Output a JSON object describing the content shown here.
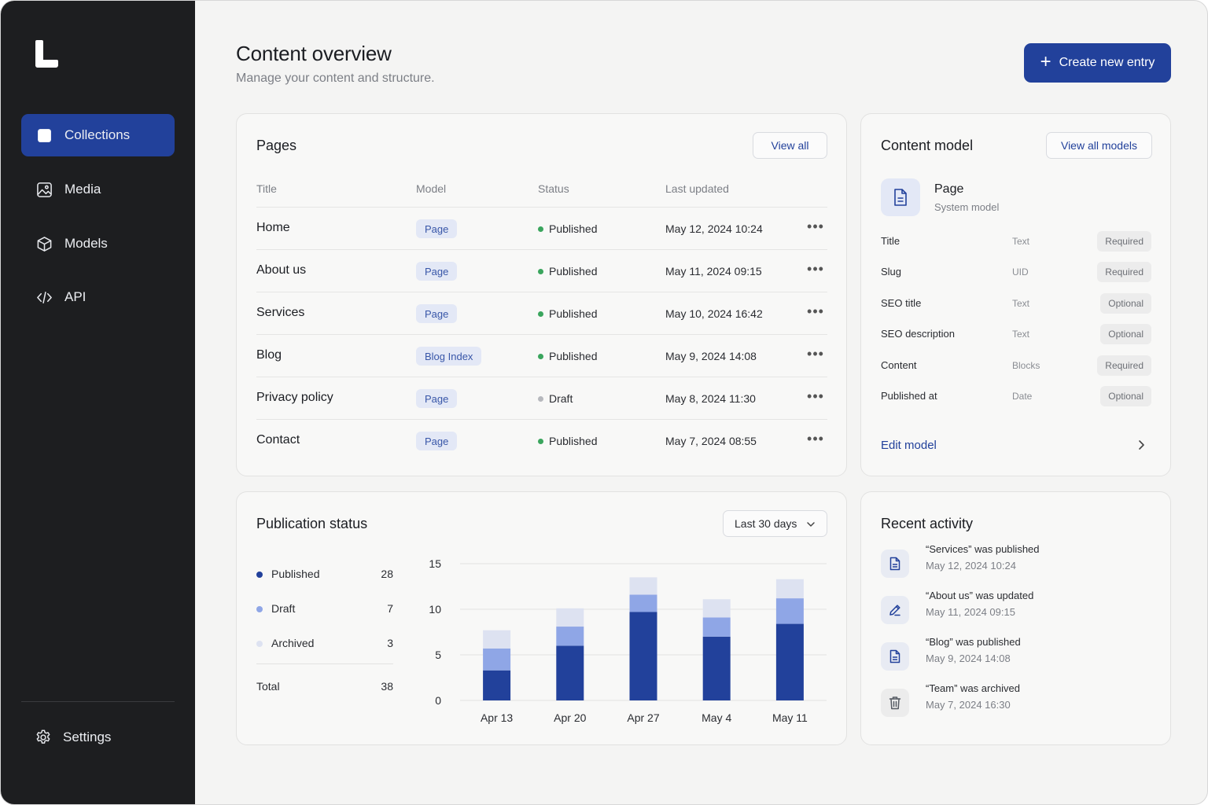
{
  "sidebar": {
    "items": [
      {
        "label": "Collections",
        "icon": "square-icon",
        "active": true
      },
      {
        "label": "Media",
        "icon": "image-icon",
        "active": false
      },
      {
        "label": "Models",
        "icon": "cube-icon",
        "active": false
      },
      {
        "label": "API",
        "icon": "code-icon",
        "active": false
      }
    ],
    "settings_label": "Settings"
  },
  "header": {
    "title": "Content overview",
    "subtitle": "Manage your content and structure.",
    "create_label": "Create new entry"
  },
  "pages": {
    "title": "Pages",
    "view_all": "View all",
    "columns": [
      "Title",
      "Model",
      "Status",
      "Last updated"
    ],
    "rows": [
      {
        "title": "Home",
        "model": "Page",
        "status": "Published",
        "updated": "May 12, 2024 10:24"
      },
      {
        "title": "About us",
        "model": "Page",
        "status": "Published",
        "updated": "May 11, 2024 09:15"
      },
      {
        "title": "Services",
        "model": "Page",
        "status": "Published",
        "updated": "May 10, 2024 16:42"
      },
      {
        "title": "Blog",
        "model": "Blog Index",
        "status": "Published",
        "updated": "May 9, 2024 14:08"
      },
      {
        "title": "Privacy policy",
        "model": "Page",
        "status": "Draft",
        "updated": "May 8, 2024 11:30"
      },
      {
        "title": "Contact",
        "model": "Page",
        "status": "Published",
        "updated": "May 7, 2024 08:55"
      }
    ]
  },
  "content_model": {
    "title": "Content model",
    "view_all": "View all models",
    "model_name": "Page",
    "model_sub": "System model",
    "fields": [
      {
        "name": "Title",
        "type": "Text",
        "req": "Required"
      },
      {
        "name": "Slug",
        "type": "UID",
        "req": "Required"
      },
      {
        "name": "SEO title",
        "type": "Text",
        "req": "Optional"
      },
      {
        "name": "SEO description",
        "type": "Text",
        "req": "Optional"
      },
      {
        "name": "Content",
        "type": "Blocks",
        "req": "Required"
      },
      {
        "name": "Published at",
        "type": "Date",
        "req": "Optional"
      }
    ],
    "edit_label": "Edit model"
  },
  "publication": {
    "title": "Publication status",
    "range": "Last 30 days",
    "legend": [
      {
        "label": "Published",
        "value": "28",
        "color": "#22419b"
      },
      {
        "label": "Draft",
        "value": "7",
        "color": "#8fa6e6"
      },
      {
        "label": "Archived",
        "value": "3",
        "color": "#dde2f1"
      }
    ],
    "total_label": "Total",
    "total_value": "38"
  },
  "chart_data": {
    "type": "bar",
    "stacked": true,
    "categories": [
      "Apr 13",
      "Apr 20",
      "Apr 27",
      "May 4",
      "May 11"
    ],
    "series": [
      {
        "name": "Published",
        "values": [
          3.3,
          6.0,
          9.7,
          7.0,
          8.4
        ],
        "color": "#22419b"
      },
      {
        "name": "Draft",
        "values": [
          2.4,
          2.1,
          1.9,
          2.1,
          2.8
        ],
        "color": "#8fa6e6"
      },
      {
        "name": "Archived",
        "values": [
          2.0,
          2.0,
          1.9,
          2.0,
          2.1
        ],
        "color": "#dde2f1"
      }
    ],
    "yticks": [
      0,
      5,
      10,
      15
    ],
    "ylim": [
      0,
      15
    ],
    "grid": true
  },
  "activity": {
    "title": "Recent activity",
    "items": [
      {
        "text": "“Services” was published",
        "time": "May 12, 2024 10:24",
        "icon": "document-icon"
      },
      {
        "text": "“About us” was updated",
        "time": "May 11, 2024 09:15",
        "icon": "pencil-icon"
      },
      {
        "text": "“Blog” was published",
        "time": "May 9, 2024 14:08",
        "icon": "document-icon"
      },
      {
        "text": "“Team” was archived",
        "time": "May 7, 2024 16:30",
        "icon": "trash-icon"
      }
    ]
  }
}
